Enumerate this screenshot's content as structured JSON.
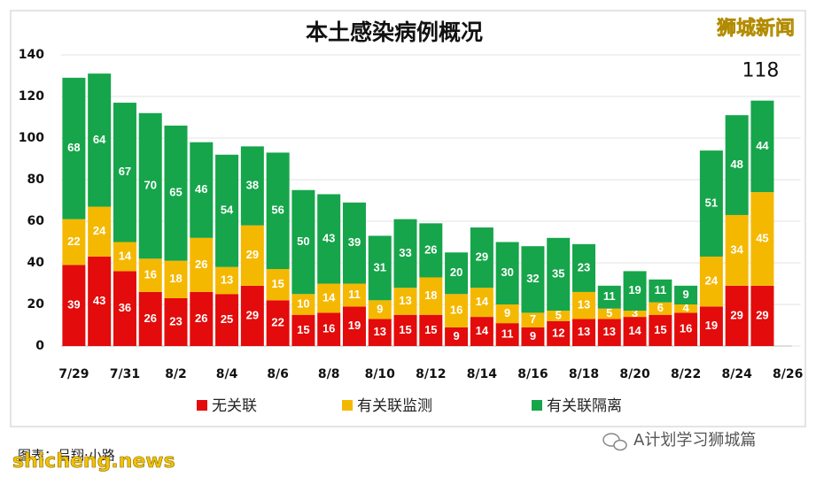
{
  "chart_data": {
    "type": "bar",
    "stacked": true,
    "title": "本土感染病例概况",
    "annotation": "118",
    "categories": [
      "7/29",
      null,
      "7/31",
      null,
      "8/2",
      null,
      "8/4",
      null,
      "8/6",
      null,
      "8/8",
      null,
      "8/10",
      null,
      "8/12",
      null,
      "8/14",
      null,
      "8/16",
      null,
      "8/18",
      null,
      "8/20",
      null,
      "8/22",
      null,
      "8/24",
      null,
      "8/26"
    ],
    "series": [
      {
        "name": "无关联",
        "color": "#e30b0b",
        "values": [
          39,
          43,
          36,
          26,
          23,
          26,
          25,
          29,
          22,
          15,
          16,
          19,
          13,
          15,
          15,
          9,
          14,
          11,
          9,
          12,
          13,
          13,
          14,
          15,
          16,
          19,
          29,
          29,
          null
        ]
      },
      {
        "name": "有关联监测",
        "color": "#f5b800",
        "values": [
          22,
          24,
          14,
          16,
          18,
          26,
          13,
          29,
          15,
          10,
          14,
          11,
          9,
          13,
          18,
          16,
          14,
          9,
          7,
          5,
          13,
          5,
          3,
          6,
          4,
          24,
          34,
          45,
          null
        ]
      },
      {
        "name": "有关联隔离",
        "color": "#16a54a",
        "values": [
          68,
          64,
          67,
          70,
          65,
          46,
          54,
          38,
          56,
          50,
          43,
          39,
          31,
          33,
          26,
          20,
          29,
          30,
          32,
          35,
          23,
          11,
          19,
          11,
          9,
          51,
          48,
          44,
          null
        ]
      }
    ],
    "ylim": [
      0,
      140
    ],
    "yticks": [
      0,
      20,
      40,
      60,
      80,
      100,
      120,
      140
    ],
    "grid": true
  },
  "watermarks": {
    "top_right": "狮城新闻",
    "bottom_left": "shicheng.news",
    "credit": "图表：吕翔·小路",
    "bottom_right": "A计划学习狮城篇"
  }
}
